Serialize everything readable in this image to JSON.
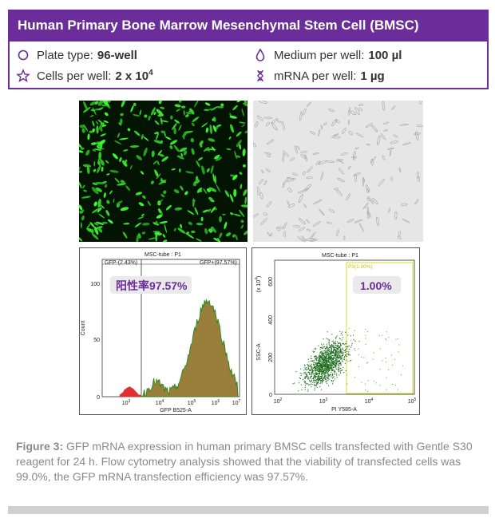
{
  "title": "Human Primary  Bone Marrow Mesenchymal Stem  Cell (BMSC)",
  "params": {
    "plate_label": "Plate type:",
    "plate_value": "96-well",
    "medium_label": "Medium per well:",
    "medium_value": "100 µl",
    "cells_label": "Cells per well:",
    "cells_value": "2 x 10",
    "cells_exp": "4",
    "mrna_label": "mRNA  per well:",
    "mrna_value": "1 µg"
  },
  "icon_names": [
    "circle-outline-icon",
    "drop-outline-icon",
    "star-outline-icon",
    "dna-icon"
  ],
  "colors": {
    "accent": "#6a2d9a",
    "gfp_fill": "#9a7f3c",
    "gfp_line": "#2f8a1a",
    "neg_fill": "#e03030",
    "scatter": "#1a6a1a",
    "gate": "#d8d820"
  },
  "histogram": {
    "title": "MSC-tube : P1",
    "gate_left": "GFP-(2.43%)",
    "gate_right": "GFP+(97.57%)",
    "badge": "阳性率97.57%",
    "ylabel": "Count",
    "xlabel": "GFP B525-A",
    "ytick_labels": [
      "0",
      "50",
      "100"
    ],
    "xtick_labels": [
      "10",
      "3",
      "10",
      "4",
      "10",
      "5",
      "10",
      "6",
      "10",
      "7"
    ]
  },
  "scatter": {
    "title": "MSC-tube : P1",
    "gate_label": "P3(1.00%)",
    "badge": "1.00%",
    "ylabel": "SSC-A",
    "y_mult": "(x 10",
    "y_mult_exp": "4",
    "y_mult_close": ")",
    "xlabel": "PI Y585-A",
    "ytick_labels": [
      "0",
      "200",
      "400",
      "600"
    ],
    "xtick_labels": [
      "10",
      "2",
      "10",
      "3",
      "10",
      "4",
      "10",
      "5"
    ]
  },
  "caption": {
    "figure_label": "Figure 3:",
    "text": " GFP mRNA  expression in human primary BMSC cells transfected with Gentle S30 reagent for 24 h. Flow cytometry analysis showed that the viability of transfected cells was 99.0%, the GFP mRNA  transfection efficiency was 97.57%."
  }
}
